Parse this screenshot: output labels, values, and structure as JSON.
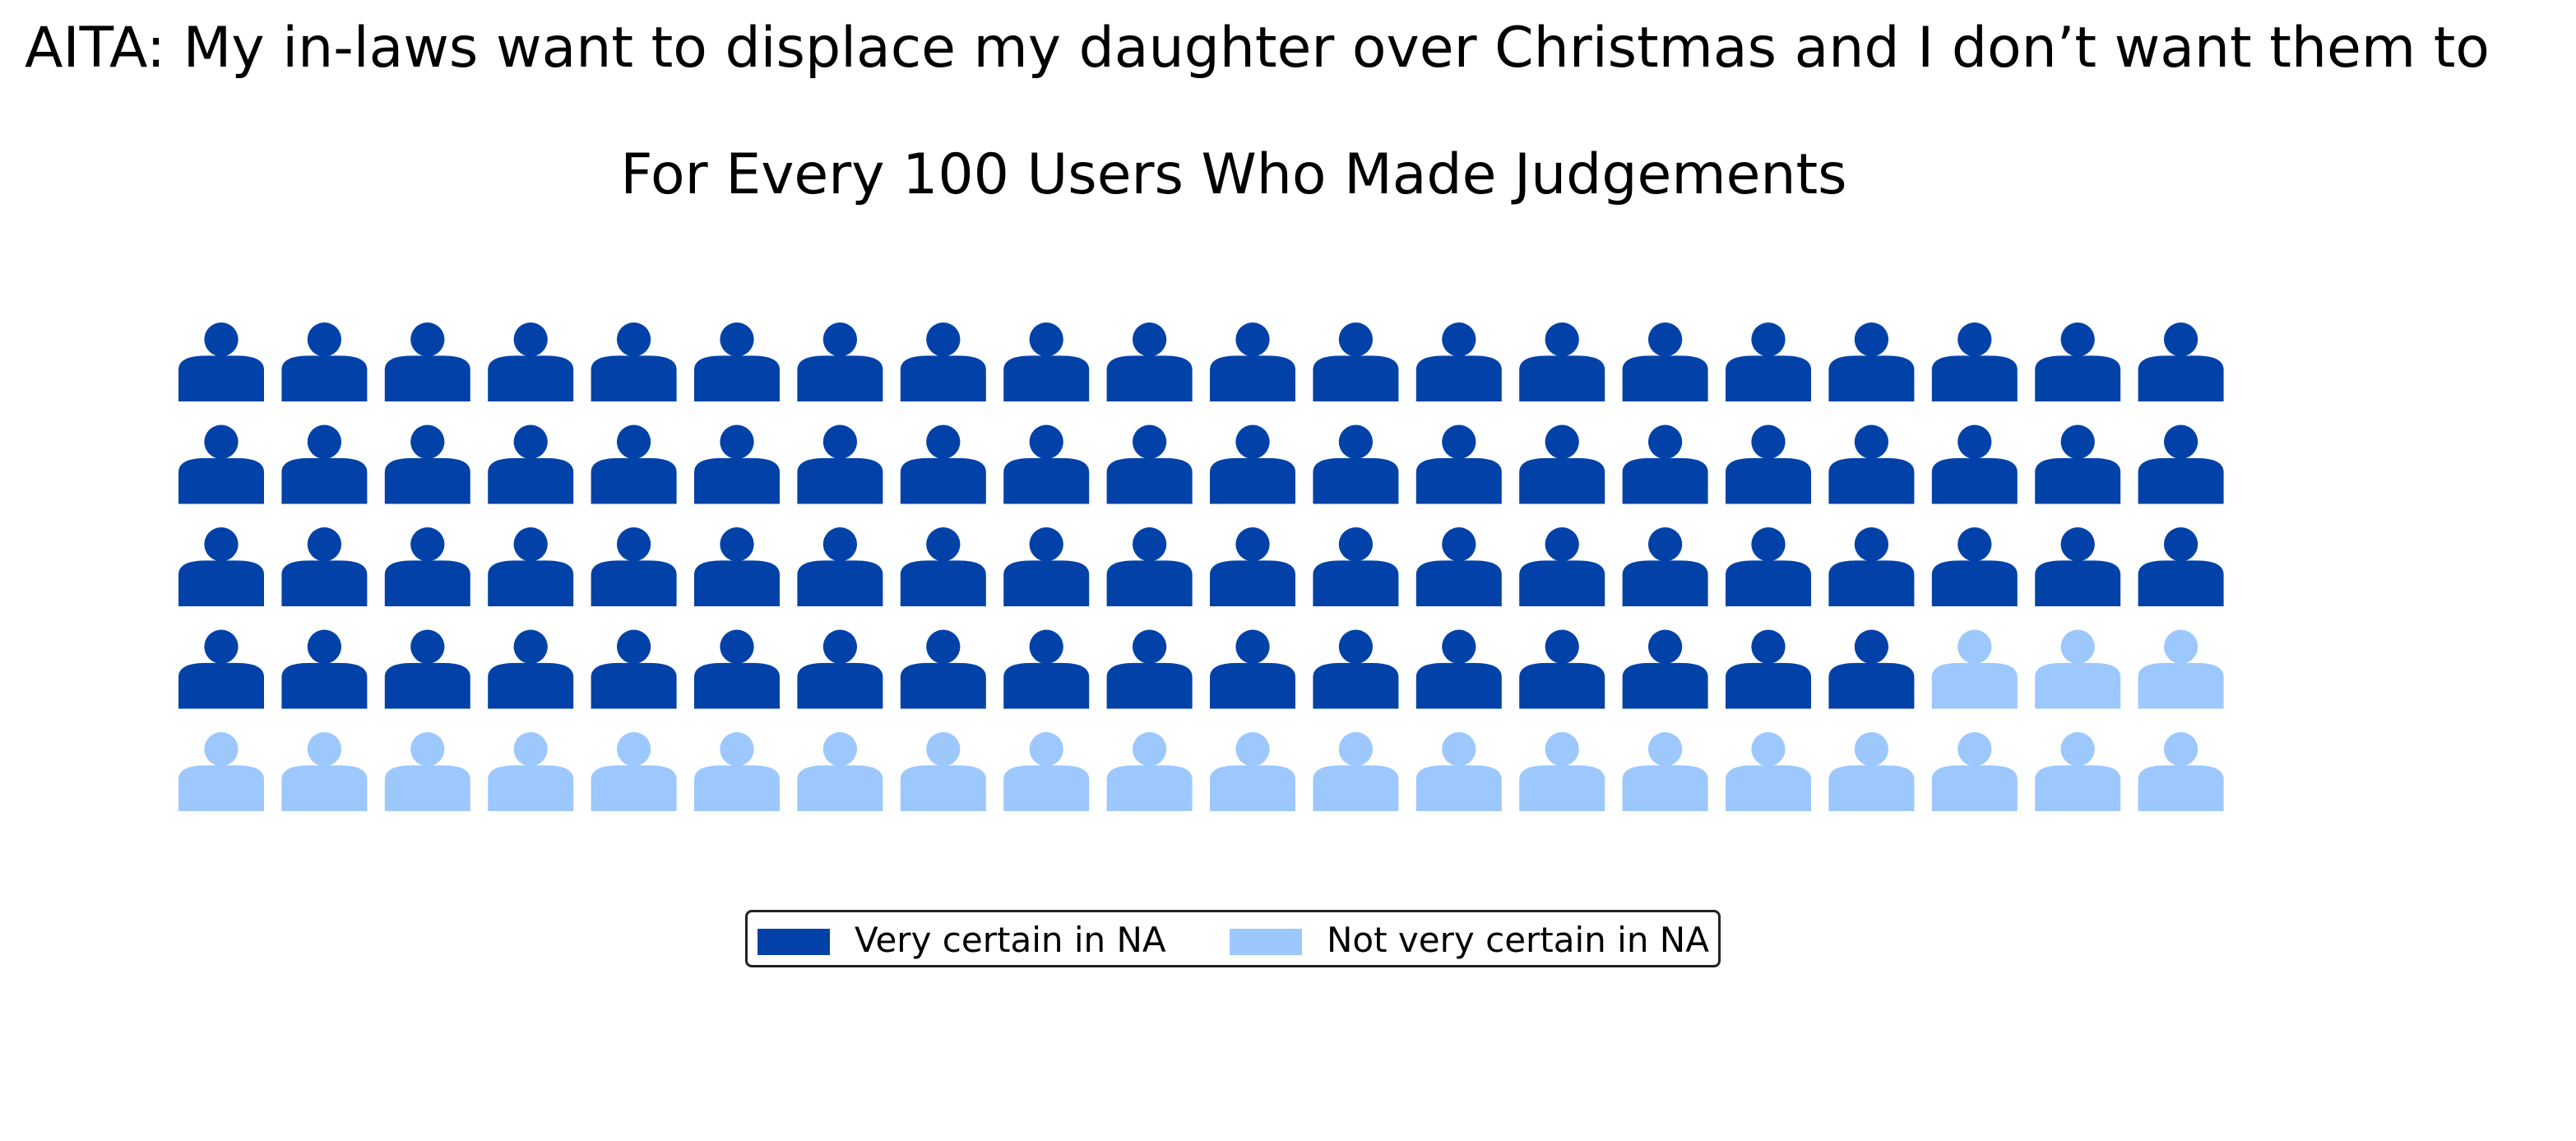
{
  "header": {
    "post_title": "AITA: My in-laws want to displace my daughter over Christmas and I don’t want them to"
  },
  "chart_data": {
    "type": "waffle",
    "title": "For Every 100 Users Who Made Judgements",
    "total": 100,
    "rows": 5,
    "columns": 20,
    "icon": "person-icon",
    "categories": [
      "Very certain in NA",
      "Not very certain in NA"
    ],
    "values": [
      77,
      23
    ],
    "colors": [
      "#0242a8",
      "#9dc8fd"
    ],
    "legend": {
      "placement": "bottom-center",
      "entries": [
        {
          "label": "Very certain in NA",
          "color": "#0242a8"
        },
        {
          "label": "Not very certain in NA",
          "color": "#9dc8fd"
        }
      ]
    }
  }
}
